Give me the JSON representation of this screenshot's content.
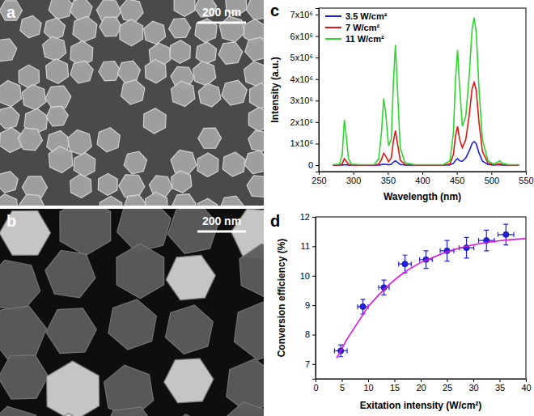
{
  "images": [
    {
      "label": "a",
      "scale_bar": "200 nm"
    },
    {
      "label": "b",
      "scale_bar": "200 nm"
    }
  ],
  "chart_data": [
    {
      "type": "line",
      "panel_label": "c",
      "x_label": "Wavelength (nm)",
      "y_label": "Intensity (a.u.)",
      "legend": "upper left",
      "x": [
        270,
        280,
        284,
        287,
        290,
        293,
        297,
        310,
        330,
        337,
        341,
        344,
        347,
        351,
        355,
        358,
        361,
        364,
        368,
        375,
        390,
        430,
        440,
        445,
        448,
        451,
        454,
        458,
        463,
        468,
        472,
        475,
        478,
        482,
        487,
        495,
        503,
        508,
        512,
        516,
        525,
        540
      ],
      "series": [
        {
          "name": "3.5 W/cm²",
          "color": "#1f1fd6",
          "values": [
            0,
            0,
            5000,
            20000,
            12000,
            3000,
            0,
            0,
            0,
            5000,
            25000,
            50000,
            40000,
            15000,
            40000,
            140000,
            200000,
            130000,
            30000,
            5000,
            0,
            0,
            10000,
            80000,
            220000,
            300000,
            200000,
            180000,
            340000,
            670000,
            1000000,
            1100000,
            1000000,
            570000,
            190000,
            30000,
            5000,
            8000,
            12000,
            5000,
            0,
            0
          ]
        },
        {
          "name": "7 W/cm²",
          "color": "#e01515",
          "values": [
            0,
            5000,
            70000,
            300000,
            180000,
            40000,
            5000,
            0,
            0,
            50000,
            280000,
            550000,
            420000,
            160000,
            330000,
            1100000,
            1600000,
            1000000,
            230000,
            30000,
            0,
            0,
            60000,
            500000,
            1350000,
            1800000,
            1200000,
            800000,
            1200000,
            2350000,
            3550000,
            3850000,
            3500000,
            2000000,
            650000,
            100000,
            20000,
            40000,
            60000,
            25000,
            5000,
            0
          ]
        },
        {
          "name": "11 W/cm²",
          "color": "#2ed62e",
          "values": [
            20000,
            50000,
            500000,
            2100000,
            1300000,
            300000,
            50000,
            20000,
            30000,
            300000,
            1600000,
            3100000,
            2400000,
            900000,
            1200000,
            3800000,
            5600000,
            3500000,
            800000,
            100000,
            20000,
            20000,
            200000,
            1500000,
            4000000,
            5350000,
            3600000,
            1800000,
            2300000,
            4200000,
            6300000,
            6850000,
            6200000,
            3600000,
            1200000,
            200000,
            50000,
            120000,
            200000,
            80000,
            20000,
            20000
          ]
        }
      ],
      "xlim": [
        250,
        550
      ],
      "xticks": [
        250,
        300,
        350,
        400,
        450,
        500,
        550
      ],
      "ylim": [
        -300000,
        7300000
      ],
      "yticks": [
        0,
        {
          "value": 1000000,
          "label": "1x10⁶"
        },
        {
          "value": 2000000,
          "label": "2x10⁶"
        },
        {
          "value": 3000000,
          "label": "3x10⁶"
        },
        {
          "value": 4000000,
          "label": "4x10⁶"
        },
        {
          "value": 5000000,
          "label": "5x10⁶"
        },
        {
          "value": 6000000,
          "label": "6x10⁶"
        },
        {
          "value": 7000000,
          "label": "7x10⁶"
        }
      ]
    },
    {
      "type": "scatter",
      "panel_label": "d",
      "x_label": "Exitation intensity (W/cm²)",
      "y_label": "Conversion efficiency (%)",
      "series": [
        {
          "type": "scatter",
          "marker": "circle",
          "color": "#2020e8",
          "x": [
            4.8,
            9,
            13,
            17,
            21,
            25,
            28.7,
            32.5,
            36.2
          ],
          "values": [
            7.45,
            8.95,
            9.6,
            10.4,
            10.55,
            10.85,
            10.95,
            11.2,
            11.4
          ],
          "x_error": [
            1.2,
            1,
            1,
            1.2,
            1.2,
            1.3,
            1.4,
            1.5,
            1.5
          ],
          "error": [
            0.2,
            0.25,
            0.25,
            0.3,
            0.3,
            0.35,
            0.35,
            0.35,
            0.35
          ]
        },
        {
          "type": "line",
          "line_style": "solid",
          "color": "#e010e0",
          "x": [
            4,
            6,
            8,
            10,
            12,
            14,
            16,
            18,
            20,
            22,
            24,
            26,
            28,
            30,
            32,
            34,
            36,
            38,
            40
          ],
          "values": [
            7.2,
            7.85,
            8.4,
            8.95,
            9.35,
            9.7,
            10.0,
            10.25,
            10.45,
            10.6,
            10.75,
            10.87,
            10.97,
            11.05,
            11.12,
            11.17,
            11.21,
            11.24,
            11.26
          ]
        }
      ],
      "xlim": [
        0,
        40
      ],
      "xticks": [
        0,
        5,
        10,
        15,
        20,
        25,
        30,
        35,
        40
      ],
      "ylim": [
        6.5,
        12
      ],
      "yticks": [
        7,
        8,
        9,
        10,
        11,
        12
      ]
    }
  ]
}
